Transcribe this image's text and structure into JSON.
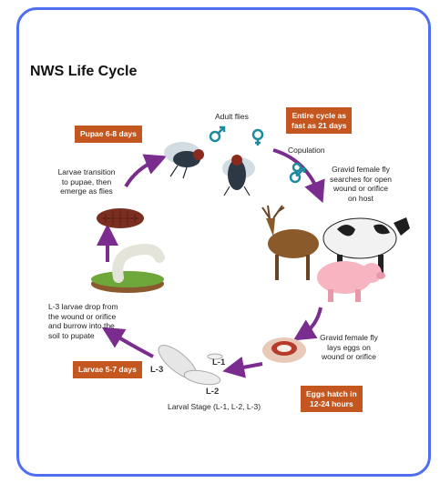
{
  "title": "NWS Life Cycle",
  "stage_boxes": {
    "pupae": {
      "lines": [
        "Pupae 6-8 days"
      ]
    },
    "entire_cycle": {
      "lines": [
        "Entire cycle as",
        "fast as 21 days"
      ]
    },
    "larvae": {
      "lines": [
        "Larvae 5-7 days"
      ]
    },
    "eggs": {
      "lines": [
        "Eggs hatch in",
        "12-24 hours"
      ]
    }
  },
  "labels": {
    "adult_flies": {
      "lines": [
        "Adult flies"
      ]
    },
    "copulation": {
      "lines": [
        "Copulation"
      ]
    },
    "gravid_search": {
      "lines": [
        "Gravid female fly",
        "searches for open",
        "wound or orifice",
        "on host"
      ]
    },
    "transition": {
      "lines": [
        "Larvae transition",
        "to pupae, then",
        "emerge as flies"
      ]
    },
    "drop": {
      "lines": [
        "L-3 larvae drop from",
        "the wound or orifice",
        "and burrow into the",
        "soil to pupate"
      ]
    },
    "lays_eggs": {
      "lines": [
        "Gravid female fly",
        "lays eggs on",
        "wound or orifice"
      ]
    },
    "l3": {
      "lines": [
        "L-3"
      ]
    },
    "l1": {
      "lines": [
        "L-1"
      ]
    },
    "l2": {
      "lines": [
        "L-2"
      ]
    },
    "larval_stage": {
      "lines": [
        "Larval Stage (L-1, L-2, L-3)"
      ]
    }
  }
}
